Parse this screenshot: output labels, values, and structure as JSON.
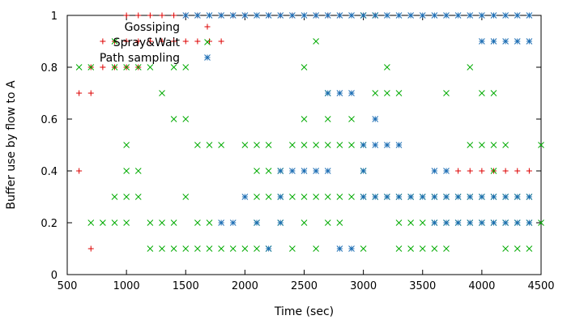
{
  "chart_data": {
    "type": "scatter",
    "xlabel": "Time (sec)",
    "ylabel": "Buffer use by flow to A",
    "xlim": [
      500,
      4500
    ],
    "ylim": [
      0,
      1
    ],
    "xticks": [
      500,
      1000,
      1500,
      2000,
      2500,
      3000,
      3500,
      4000,
      4500
    ],
    "yticks": [
      0,
      0.2,
      0.4,
      0.6,
      0.8,
      1
    ],
    "yticklabels": [
      "0",
      "0.2",
      "0.4",
      "0.6",
      "0.8",
      "1"
    ],
    "grid": false,
    "legend_position": "top-left",
    "series": [
      {
        "name": "Gossiping",
        "marker": "plus",
        "color": "#dd0000",
        "points": [
          [
            600,
            0.4
          ],
          [
            600,
            0.7
          ],
          [
            700,
            0.7
          ],
          [
            700,
            0.1
          ],
          [
            700,
            0.8
          ],
          [
            800,
            0.8
          ],
          [
            900,
            0.8
          ],
          [
            1000,
            0.8
          ],
          [
            1100,
            0.8
          ],
          [
            800,
            0.9
          ],
          [
            900,
            0.9
          ],
          [
            1000,
            0.9
          ],
          [
            1100,
            0.9
          ],
          [
            1200,
            0.9
          ],
          [
            1300,
            0.9
          ],
          [
            1400,
            0.9
          ],
          [
            1500,
            0.9
          ],
          [
            1600,
            0.9
          ],
          [
            1700,
            0.9
          ],
          [
            1800,
            0.9
          ],
          [
            1000,
            1
          ],
          [
            1100,
            1
          ],
          [
            1200,
            1
          ],
          [
            1300,
            1
          ],
          [
            1400,
            1
          ],
          [
            1500,
            1
          ],
          [
            1600,
            1
          ],
          [
            1700,
            1
          ],
          [
            1800,
            1
          ],
          [
            1900,
            1
          ],
          [
            2000,
            1
          ],
          [
            2100,
            1
          ],
          [
            2200,
            1
          ],
          [
            2300,
            1
          ],
          [
            2400,
            1
          ],
          [
            2500,
            1
          ],
          [
            2600,
            1
          ],
          [
            2700,
            1
          ],
          [
            2800,
            1
          ],
          [
            2900,
            1
          ],
          [
            3000,
            1
          ],
          [
            3100,
            1
          ],
          [
            3700,
            0.4
          ],
          [
            3800,
            0.4
          ],
          [
            3900,
            0.4
          ],
          [
            4000,
            0.4
          ],
          [
            4100,
            0.4
          ],
          [
            4200,
            0.4
          ],
          [
            4300,
            0.4
          ],
          [
            4400,
            0.4
          ]
        ]
      },
      {
        "name": "Spray&Wait",
        "marker": "x",
        "color": "#00aa00",
        "points": [
          [
            600,
            0.8
          ],
          [
            700,
            0.8
          ],
          [
            900,
            0.8
          ],
          [
            1000,
            0.8
          ],
          [
            1100,
            0.8
          ],
          [
            1200,
            0.8
          ],
          [
            1400,
            0.8
          ],
          [
            1500,
            0.8
          ],
          [
            900,
            0.9
          ],
          [
            1000,
            0.5
          ],
          [
            1000,
            0.4
          ],
          [
            1100,
            0.4
          ],
          [
            900,
            0.3
          ],
          [
            1000,
            0.3
          ],
          [
            1100,
            0.3
          ],
          [
            1500,
            0.3
          ],
          [
            700,
            0.2
          ],
          [
            800,
            0.2
          ],
          [
            900,
            0.2
          ],
          [
            1000,
            0.2
          ],
          [
            1200,
            0.2
          ],
          [
            1300,
            0.2
          ],
          [
            1400,
            0.2
          ],
          [
            1600,
            0.2
          ],
          [
            1700,
            0.2
          ],
          [
            1200,
            0.1
          ],
          [
            1300,
            0.1
          ],
          [
            1400,
            0.1
          ],
          [
            1500,
            0.1
          ],
          [
            1600,
            0.1
          ],
          [
            1700,
            0.1
          ],
          [
            1800,
            0.1
          ],
          [
            1900,
            0.1
          ],
          [
            2000,
            0.1
          ],
          [
            2100,
            0.1
          ],
          [
            2200,
            0.1
          ],
          [
            2400,
            0.1
          ],
          [
            2600,
            0.1
          ],
          [
            3000,
            0.1
          ],
          [
            3300,
            0.1
          ],
          [
            3400,
            0.1
          ],
          [
            3500,
            0.1
          ],
          [
            3600,
            0.1
          ],
          [
            3700,
            0.1
          ],
          [
            4200,
            0.1
          ],
          [
            4300,
            0.1
          ],
          [
            4400,
            0.1
          ],
          [
            1300,
            0.7
          ],
          [
            1400,
            0.6
          ],
          [
            1500,
            0.6
          ],
          [
            1600,
            0.5
          ],
          [
            1700,
            0.5
          ],
          [
            1800,
            0.5
          ],
          [
            2000,
            0.5
          ],
          [
            2100,
            0.5
          ],
          [
            2200,
            0.5
          ],
          [
            2400,
            0.5
          ],
          [
            2500,
            0.5
          ],
          [
            2600,
            0.5
          ],
          [
            2700,
            0.5
          ],
          [
            2800,
            0.5
          ],
          [
            2900,
            0.5
          ],
          [
            3000,
            0.5
          ],
          [
            2500,
            0.6
          ],
          [
            2700,
            0.6
          ],
          [
            2900,
            0.6
          ],
          [
            2700,
            0.7
          ],
          [
            3100,
            0.7
          ],
          [
            3200,
            0.7
          ],
          [
            3300,
            0.7
          ],
          [
            3700,
            0.7
          ],
          [
            4000,
            0.7
          ],
          [
            4100,
            0.7
          ],
          [
            2100,
            0.4
          ],
          [
            2200,
            0.4
          ],
          [
            2300,
            0.4
          ],
          [
            3000,
            0.4
          ],
          [
            2100,
            0.3
          ],
          [
            2200,
            0.3
          ],
          [
            2300,
            0.3
          ],
          [
            2400,
            0.3
          ],
          [
            2500,
            0.3
          ],
          [
            2600,
            0.3
          ],
          [
            2700,
            0.3
          ],
          [
            2800,
            0.3
          ],
          [
            2900,
            0.3
          ],
          [
            3000,
            0.3
          ],
          [
            3100,
            0.3
          ],
          [
            3200,
            0.3
          ],
          [
            3300,
            0.3
          ],
          [
            3400,
            0.3
          ],
          [
            3500,
            0.3
          ],
          [
            3600,
            0.3
          ],
          [
            3700,
            0.3
          ],
          [
            3800,
            0.3
          ],
          [
            3900,
            0.3
          ],
          [
            4000,
            0.3
          ],
          [
            4100,
            0.3
          ],
          [
            4200,
            0.3
          ],
          [
            4300,
            0.3
          ],
          [
            4400,
            0.3
          ],
          [
            2100,
            0.2
          ],
          [
            2300,
            0.2
          ],
          [
            2500,
            0.2
          ],
          [
            2700,
            0.2
          ],
          [
            2800,
            0.2
          ],
          [
            3300,
            0.2
          ],
          [
            3400,
            0.2
          ],
          [
            3500,
            0.2
          ],
          [
            3600,
            0.2
          ],
          [
            3700,
            0.2
          ],
          [
            3800,
            0.2
          ],
          [
            3900,
            0.2
          ],
          [
            4000,
            0.2
          ],
          [
            4100,
            0.2
          ],
          [
            4200,
            0.2
          ],
          [
            4300,
            0.2
          ],
          [
            4400,
            0.2
          ],
          [
            4500,
            0.2
          ],
          [
            3900,
            0.5
          ],
          [
            4000,
            0.5
          ],
          [
            4100,
            0.5
          ],
          [
            4200,
            0.5
          ],
          [
            4500,
            0.5
          ],
          [
            4100,
            0.4
          ],
          [
            2500,
            0.8
          ],
          [
            3200,
            0.8
          ],
          [
            3900,
            0.8
          ],
          [
            2600,
            0.9
          ],
          [
            3000,
            1
          ],
          [
            3100,
            1
          ]
        ]
      },
      {
        "name": "Path sampling",
        "marker": "star",
        "color": "#1e6eb4",
        "points": [
          [
            1500,
            1
          ],
          [
            1600,
            1
          ],
          [
            1700,
            1
          ],
          [
            1800,
            1
          ],
          [
            1900,
            1
          ],
          [
            2000,
            1
          ],
          [
            2100,
            1
          ],
          [
            2200,
            1
          ],
          [
            2300,
            1
          ],
          [
            2400,
            1
          ],
          [
            2500,
            1
          ],
          [
            2600,
            1
          ],
          [
            2700,
            1
          ],
          [
            2800,
            1
          ],
          [
            2900,
            1
          ],
          [
            3000,
            1
          ],
          [
            3100,
            1
          ],
          [
            3200,
            1
          ],
          [
            3300,
            1
          ],
          [
            3400,
            1
          ],
          [
            3500,
            1
          ],
          [
            3600,
            1
          ],
          [
            3700,
            1
          ],
          [
            3800,
            1
          ],
          [
            3900,
            1
          ],
          [
            4000,
            1
          ],
          [
            4100,
            1
          ],
          [
            4200,
            1
          ],
          [
            4300,
            1
          ],
          [
            4400,
            1
          ],
          [
            4000,
            0.9
          ],
          [
            4100,
            0.9
          ],
          [
            4200,
            0.9
          ],
          [
            4300,
            0.9
          ],
          [
            4400,
            0.9
          ],
          [
            2700,
            0.7
          ],
          [
            2800,
            0.7
          ],
          [
            2900,
            0.7
          ],
          [
            3100,
            0.6
          ],
          [
            3000,
            0.5
          ],
          [
            3100,
            0.5
          ],
          [
            3200,
            0.5
          ],
          [
            3300,
            0.5
          ],
          [
            2300,
            0.4
          ],
          [
            2400,
            0.4
          ],
          [
            2500,
            0.4
          ],
          [
            2600,
            0.4
          ],
          [
            2700,
            0.4
          ],
          [
            3000,
            0.4
          ],
          [
            3600,
            0.4
          ],
          [
            3700,
            0.4
          ],
          [
            2000,
            0.3
          ],
          [
            2300,
            0.3
          ],
          [
            3000,
            0.3
          ],
          [
            3100,
            0.3
          ],
          [
            3200,
            0.3
          ],
          [
            3300,
            0.3
          ],
          [
            3400,
            0.3
          ],
          [
            3500,
            0.3
          ],
          [
            3600,
            0.3
          ],
          [
            3700,
            0.3
          ],
          [
            3800,
            0.3
          ],
          [
            3900,
            0.3
          ],
          [
            4000,
            0.3
          ],
          [
            4100,
            0.3
          ],
          [
            4200,
            0.3
          ],
          [
            4300,
            0.3
          ],
          [
            4400,
            0.3
          ],
          [
            1800,
            0.2
          ],
          [
            1900,
            0.2
          ],
          [
            2100,
            0.2
          ],
          [
            2300,
            0.2
          ],
          [
            3600,
            0.2
          ],
          [
            3700,
            0.2
          ],
          [
            3800,
            0.2
          ],
          [
            3900,
            0.2
          ],
          [
            4000,
            0.2
          ],
          [
            4100,
            0.2
          ],
          [
            4200,
            0.2
          ],
          [
            4300,
            0.2
          ],
          [
            4400,
            0.2
          ],
          [
            2200,
            0.1
          ],
          [
            2800,
            0.1
          ],
          [
            2900,
            0.1
          ]
        ]
      }
    ]
  }
}
